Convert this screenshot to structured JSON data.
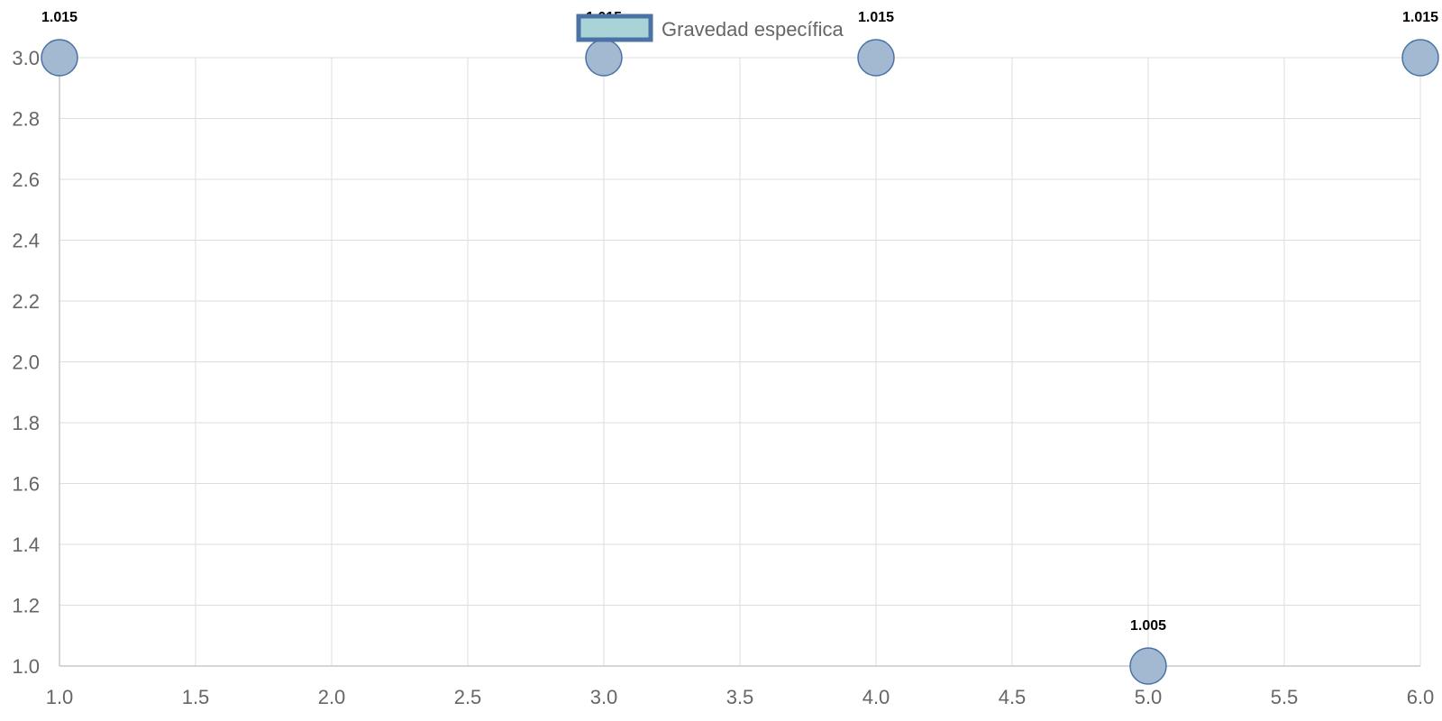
{
  "chart_data": {
    "type": "scatter",
    "series": [
      {
        "name": "Gravedad específica",
        "points": [
          {
            "x": 1.0,
            "y": 3.0,
            "label": "1.015"
          },
          {
            "x": 3.0,
            "y": 3.0,
            "label": "1.015"
          },
          {
            "x": 4.0,
            "y": 3.0,
            "label": "1.015"
          },
          {
            "x": 5.0,
            "y": 1.0,
            "label": "1.005"
          },
          {
            "x": 6.0,
            "y": 3.0,
            "label": "1.015"
          }
        ]
      }
    ],
    "xlim": [
      1.0,
      6.0
    ],
    "ylim": [
      1.0,
      3.0
    ],
    "x_ticks": [
      "1.0",
      "1.5",
      "2.0",
      "2.5",
      "3.0",
      "3.5",
      "4.0",
      "4.5",
      "5.0",
      "5.5",
      "6.0"
    ],
    "y_ticks": [
      "1.0",
      "1.2",
      "1.4",
      "1.6",
      "1.8",
      "2.0",
      "2.2",
      "2.4",
      "2.6",
      "2.8",
      "3.0"
    ],
    "grid": true,
    "legend_position": "top-center",
    "colors": {
      "point_fill": "#a3b8d1",
      "point_stroke": "#4a72a6",
      "legend_fill": "#a8d4d8",
      "legend_stroke": "#4a72a6"
    }
  }
}
